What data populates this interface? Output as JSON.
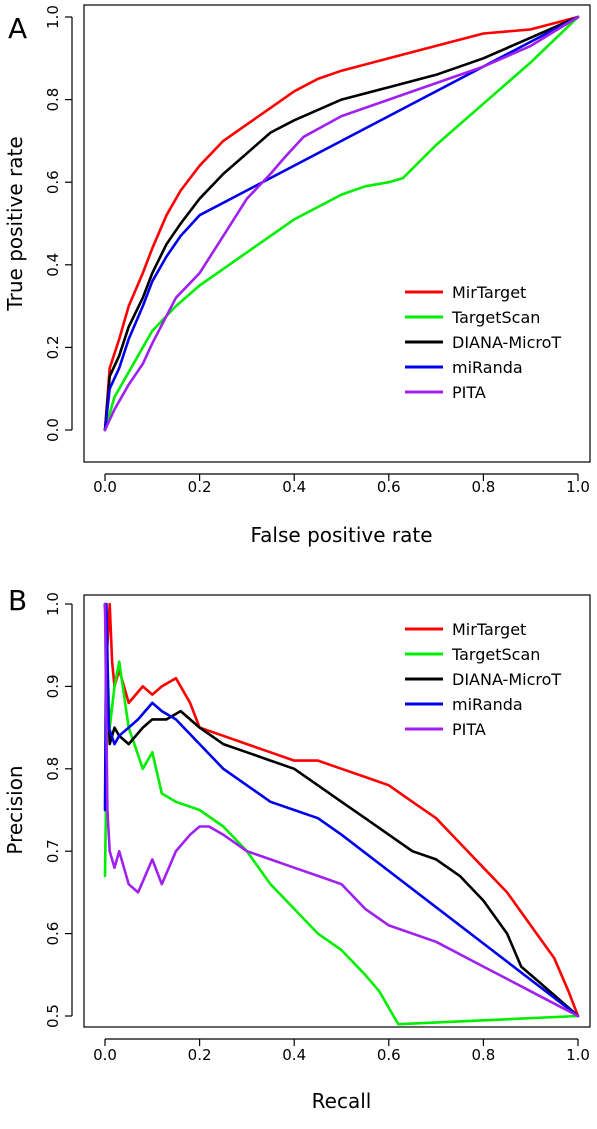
{
  "colors": {
    "MirTarget": "#ff0000",
    "TargetScan": "#00ee00",
    "DIANA-MicroT": "#000000",
    "miRanda": "#0000ee",
    "PITA": "#a020f0"
  },
  "chart_data": [
    {
      "type": "line",
      "panel_label": "A",
      "xlabel": "False positive rate",
      "ylabel": "True positive rate",
      "xlim": [
        0,
        1
      ],
      "ylim": [
        0,
        1
      ],
      "xticks": [
        "0.0",
        "0.2",
        "0.4",
        "0.6",
        "0.8",
        "1.0"
      ],
      "yticks": [
        "0.0",
        "0.2",
        "0.4",
        "0.6",
        "0.8",
        "1.0"
      ],
      "grid": false,
      "legend_position": "bottom-right",
      "series": [
        {
          "name": "MirTarget",
          "x": [
            0,
            0.01,
            0.03,
            0.05,
            0.08,
            0.1,
            0.13,
            0.16,
            0.2,
            0.25,
            0.3,
            0.35,
            0.4,
            0.45,
            0.5,
            0.6,
            0.7,
            0.8,
            0.9,
            1.0
          ],
          "y": [
            0,
            0.15,
            0.22,
            0.3,
            0.38,
            0.44,
            0.52,
            0.58,
            0.64,
            0.7,
            0.74,
            0.78,
            0.82,
            0.85,
            0.87,
            0.9,
            0.93,
            0.96,
            0.97,
            1.0
          ]
        },
        {
          "name": "TargetScan",
          "x": [
            0,
            0.02,
            0.05,
            0.08,
            0.1,
            0.15,
            0.2,
            0.25,
            0.3,
            0.35,
            0.4,
            0.45,
            0.5,
            0.55,
            0.6,
            0.63,
            0.7,
            0.8,
            0.9,
            1.0
          ],
          "y": [
            0,
            0.08,
            0.14,
            0.2,
            0.24,
            0.3,
            0.35,
            0.39,
            0.43,
            0.47,
            0.51,
            0.54,
            0.57,
            0.59,
            0.6,
            0.61,
            0.69,
            0.79,
            0.89,
            1.0
          ]
        },
        {
          "name": "DIANA-MicroT",
          "x": [
            0,
            0.01,
            0.03,
            0.05,
            0.08,
            0.1,
            0.13,
            0.16,
            0.2,
            0.25,
            0.3,
            0.35,
            0.4,
            0.5,
            0.6,
            0.7,
            0.8,
            0.9,
            1.0
          ],
          "y": [
            0,
            0.13,
            0.18,
            0.25,
            0.32,
            0.38,
            0.45,
            0.5,
            0.56,
            0.62,
            0.67,
            0.72,
            0.75,
            0.8,
            0.83,
            0.86,
            0.9,
            0.95,
            1.0
          ]
        },
        {
          "name": "miRanda",
          "x": [
            0,
            0.01,
            0.03,
            0.05,
            0.08,
            0.1,
            0.13,
            0.16,
            0.2,
            1.0
          ],
          "y": [
            0,
            0.1,
            0.15,
            0.22,
            0.3,
            0.36,
            0.42,
            0.47,
            0.52,
            1.0
          ]
        },
        {
          "name": "PITA",
          "x": [
            0,
            0.02,
            0.05,
            0.08,
            0.1,
            0.15,
            0.2,
            0.25,
            0.3,
            0.35,
            0.38,
            0.42,
            0.5,
            0.6,
            0.7,
            0.8,
            0.9,
            1.0
          ],
          "y": [
            0,
            0.05,
            0.11,
            0.16,
            0.21,
            0.32,
            0.38,
            0.47,
            0.56,
            0.62,
            0.66,
            0.71,
            0.76,
            0.8,
            0.84,
            0.88,
            0.93,
            1.0
          ]
        }
      ]
    },
    {
      "type": "line",
      "panel_label": "B",
      "xlabel": "Recall",
      "ylabel": "Precision",
      "xlim": [
        0,
        1
      ],
      "ylim": [
        0.5,
        1
      ],
      "xticks": [
        "0.0",
        "0.2",
        "0.4",
        "0.6",
        "0.8",
        "1.0"
      ],
      "yticks": [
        "0.5",
        "0.6",
        "0.7",
        "0.8",
        "0.9",
        "1.0"
      ],
      "grid": false,
      "legend_position": "top-right",
      "series": [
        {
          "name": "MirTarget",
          "x": [
            0,
            0.005,
            0.01,
            0.015,
            0.02,
            0.03,
            0.05,
            0.08,
            0.1,
            0.12,
            0.15,
            0.18,
            0.2,
            0.25,
            0.3,
            0.35,
            0.4,
            0.45,
            0.5,
            0.55,
            0.6,
            0.65,
            0.7,
            0.75,
            0.8,
            0.85,
            0.9,
            0.95,
            0.98,
            1.0
          ],
          "y": [
            1.0,
            0.95,
            1.0,
            0.93,
            0.9,
            0.92,
            0.88,
            0.9,
            0.89,
            0.9,
            0.91,
            0.88,
            0.85,
            0.84,
            0.83,
            0.82,
            0.81,
            0.81,
            0.8,
            0.79,
            0.78,
            0.76,
            0.74,
            0.71,
            0.68,
            0.65,
            0.61,
            0.57,
            0.53,
            0.5
          ]
        },
        {
          "name": "TargetScan",
          "x": [
            0,
            0.002,
            0.005,
            0.01,
            0.02,
            0.03,
            0.05,
            0.08,
            0.1,
            0.12,
            0.15,
            0.2,
            0.25,
            0.3,
            0.35,
            0.4,
            0.45,
            0.5,
            0.55,
            0.58,
            0.61,
            0.62,
            1.0
          ],
          "y": [
            0.67,
            0.75,
            0.93,
            0.85,
            0.9,
            0.93,
            0.85,
            0.8,
            0.82,
            0.77,
            0.76,
            0.75,
            0.73,
            0.7,
            0.66,
            0.63,
            0.6,
            0.58,
            0.55,
            0.53,
            0.5,
            0.49,
            0.5
          ]
        },
        {
          "name": "DIANA-MicroT",
          "x": [
            0,
            0.005,
            0.01,
            0.02,
            0.03,
            0.05,
            0.08,
            0.1,
            0.13,
            0.16,
            0.2,
            0.25,
            0.3,
            0.35,
            0.4,
            0.45,
            0.5,
            0.55,
            0.6,
            0.65,
            0.7,
            0.75,
            0.8,
            0.85,
            0.88,
            0.92,
            0.96,
            1.0
          ],
          "y": [
            1.0,
            0.9,
            0.83,
            0.85,
            0.84,
            0.83,
            0.85,
            0.86,
            0.86,
            0.87,
            0.85,
            0.83,
            0.82,
            0.81,
            0.8,
            0.78,
            0.76,
            0.74,
            0.72,
            0.7,
            0.69,
            0.67,
            0.64,
            0.6,
            0.56,
            0.54,
            0.52,
            0.5
          ]
        },
        {
          "name": "miRanda",
          "x": [
            0,
            0.003,
            0.008,
            0.02,
            0.03,
            0.05,
            0.07,
            0.1,
            0.12,
            0.15,
            0.2,
            0.25,
            0.3,
            0.35,
            0.4,
            0.45,
            0.5,
            1.0
          ],
          "y": [
            0.75,
            1.0,
            0.85,
            0.83,
            0.84,
            0.85,
            0.86,
            0.88,
            0.87,
            0.86,
            0.83,
            0.8,
            0.78,
            0.76,
            0.75,
            0.74,
            0.72,
            0.5
          ]
        },
        {
          "name": "PITA",
          "x": [
            0,
            0.005,
            0.01,
            0.02,
            0.03,
            0.05,
            0.07,
            0.1,
            0.12,
            0.15,
            0.18,
            0.2,
            0.22,
            0.25,
            0.3,
            0.35,
            0.4,
            0.45,
            0.5,
            0.55,
            0.6,
            0.7,
            0.8,
            0.9,
            1.0
          ],
          "y": [
            1.0,
            0.75,
            0.7,
            0.68,
            0.7,
            0.66,
            0.65,
            0.69,
            0.66,
            0.7,
            0.72,
            0.73,
            0.73,
            0.72,
            0.7,
            0.69,
            0.68,
            0.67,
            0.66,
            0.63,
            0.61,
            0.59,
            0.56,
            0.53,
            0.5
          ]
        }
      ]
    }
  ]
}
